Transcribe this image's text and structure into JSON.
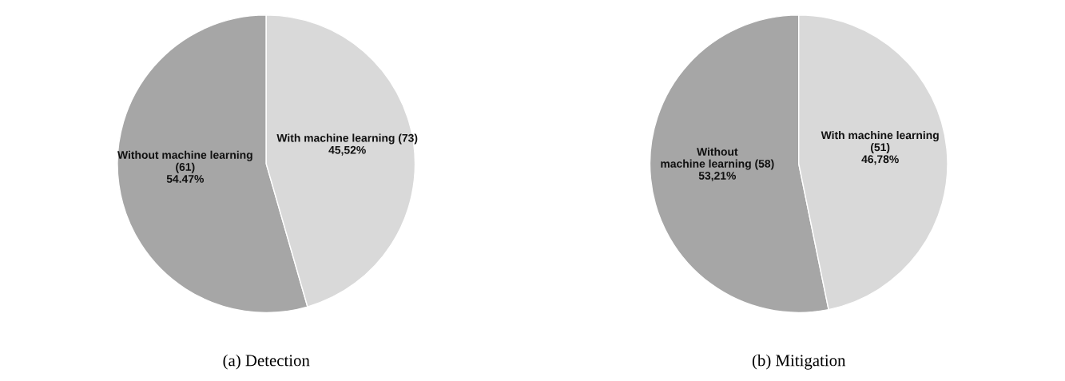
{
  "chart_data": [
    {
      "type": "pie",
      "title": "(a) Detection",
      "categories": [
        "Without machine learning\n(61)",
        "With machine learning (73)"
      ],
      "values": [
        54.47,
        45.52
      ],
      "value_labels": [
        "54.47%",
        "45,52%"
      ],
      "colors": [
        "#a6a6a6",
        "#d9d9d9"
      ],
      "legend": false
    },
    {
      "type": "pie",
      "title": "(b) Mitigation",
      "categories": [
        "Without\nmachine learning (58)",
        "With machine learning\n(51)"
      ],
      "values": [
        53.21,
        46.78
      ],
      "value_labels": [
        "53,21%",
        "46,78%"
      ],
      "colors": [
        "#a6a6a6",
        "#d9d9d9"
      ],
      "legend": false
    }
  ]
}
